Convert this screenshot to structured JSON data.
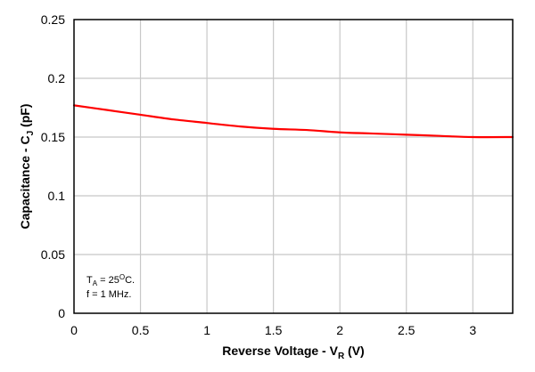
{
  "chart_data": {
    "type": "line",
    "title": "",
    "xlabel": {
      "main": "Reverse Voltage - V",
      "subscript": "R",
      "unit": " (V)"
    },
    "ylabel": {
      "main": "Capacitance - C",
      "subscript": "J",
      "unit": " (pF)"
    },
    "xlim": [
      0,
      3.3
    ],
    "ylim": [
      0,
      0.25
    ],
    "x_ticks": [
      0,
      0.5,
      1,
      1.5,
      2,
      2.5,
      3
    ],
    "x_tick_labels": [
      "0",
      "0.5",
      "1",
      "1.5",
      "2",
      "2.5",
      "3"
    ],
    "y_ticks": [
      0,
      0.05,
      0.1,
      0.15,
      0.2,
      0.25
    ],
    "y_tick_labels": [
      "0",
      "0.05",
      "0.1",
      "0.15",
      "0.2",
      "0.25"
    ],
    "grid": true,
    "annotations": [
      {
        "parts": [
          "T",
          "A",
          " = 25",
          "O",
          "C."
        ]
      },
      {
        "parts": [
          "f = 1 MHz."
        ]
      }
    ],
    "series": [
      {
        "color": "#ff0000",
        "x": [
          0,
          0.25,
          0.5,
          0.75,
          1.0,
          1.25,
          1.5,
          1.75,
          2.0,
          2.25,
          2.5,
          2.75,
          3.0,
          3.3
        ],
        "y": [
          0.177,
          0.173,
          0.169,
          0.165,
          0.162,
          0.159,
          0.157,
          0.156,
          0.154,
          0.153,
          0.152,
          0.151,
          0.15,
          0.15
        ]
      }
    ]
  }
}
